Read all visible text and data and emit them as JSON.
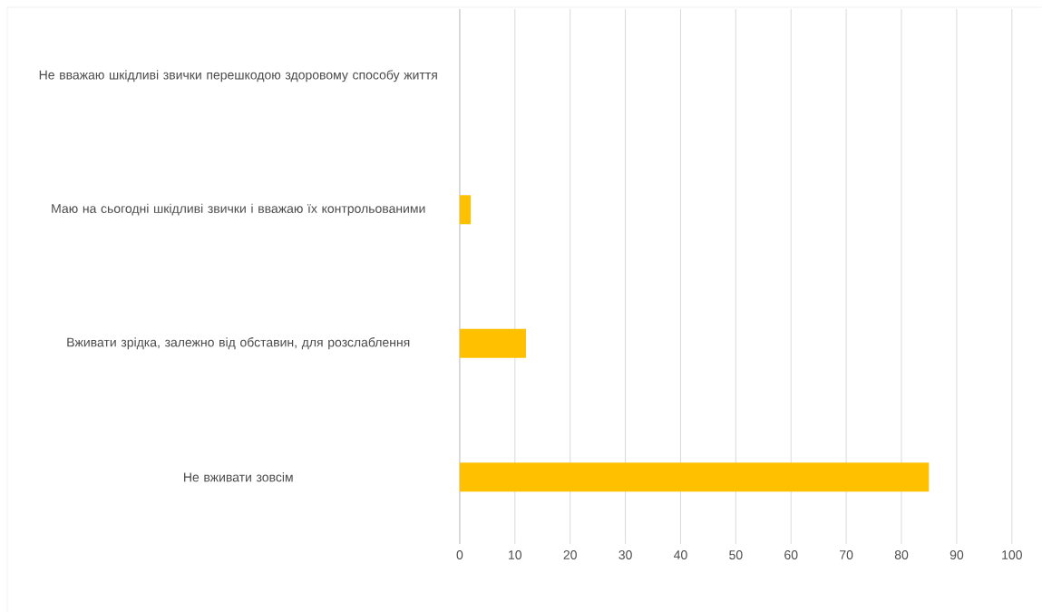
{
  "chart_data": {
    "type": "bar",
    "orientation": "horizontal",
    "categories": [
      "Не вважаю шкідливі звички перешкодою здоровому способу життя",
      "Маю на сьогодні шкідливі звички і вважаю їх контрольованими",
      "Вживати зрідка, залежно від обставин, для розслаблення",
      "Не вживати зовсім"
    ],
    "values": [
      0,
      2,
      12,
      85
    ],
    "color": "#ffc000",
    "xlim": [
      0,
      100
    ],
    "xticks": [
      0,
      10,
      20,
      30,
      40,
      50,
      60,
      70,
      80,
      90,
      100
    ],
    "grid": "x"
  }
}
